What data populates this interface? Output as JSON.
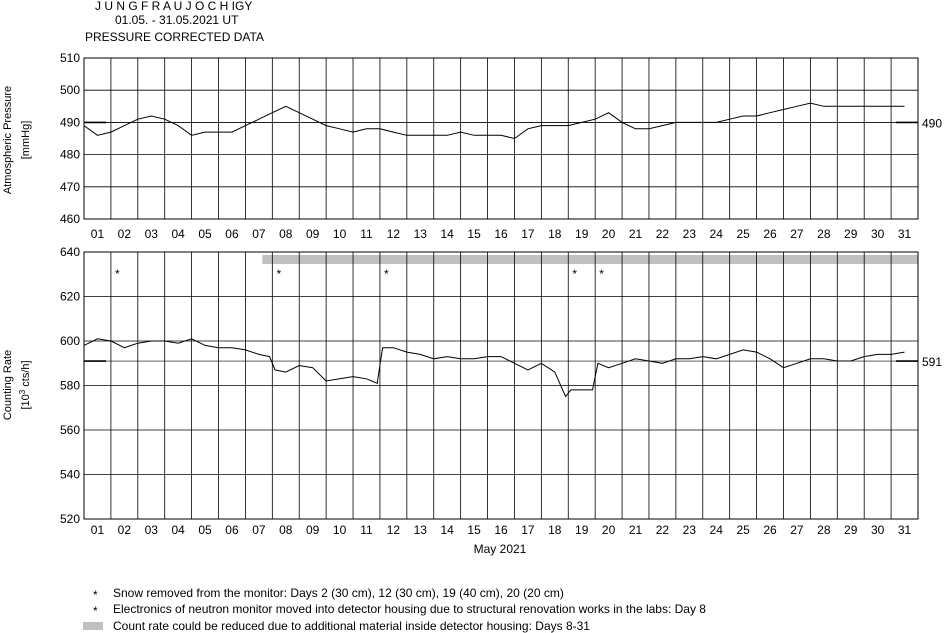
{
  "header": {
    "station": "J U N G F R A U J O C H  IGY",
    "period": "01.05. - 31.05.2021  UT",
    "subtitle": "PRESSURE CORRECTED DATA"
  },
  "chart_data": [
    {
      "type": "line",
      "title": "",
      "ylabel": "Atmospheric Pressure",
      "yunit": "[mmHg]",
      "ylim": [
        460,
        510
      ],
      "yticks": [
        "510",
        "500",
        "490",
        "480",
        "470",
        "460"
      ],
      "x_ticks": [
        "01",
        "02",
        "03",
        "04",
        "05",
        "06",
        "07",
        "08",
        "09",
        "10",
        "11",
        "12",
        "13",
        "14",
        "15",
        "16",
        "17",
        "18",
        "19",
        "20",
        "21",
        "22",
        "23",
        "24",
        "25",
        "26",
        "27",
        "28",
        "29",
        "30",
        "31"
      ],
      "grid": true,
      "reference_value": 490,
      "reference_label": "490",
      "series": [
        {
          "x": [
            1.0,
            1.5,
            2.0,
            2.5,
            3.0,
            3.5,
            4.0,
            4.5,
            5.0,
            5.5,
            6.0,
            6.5,
            7.0,
            7.5,
            8.0,
            8.5,
            9.0,
            9.5,
            10.0,
            10.5,
            11.0,
            11.5,
            12.0,
            12.5,
            13.0,
            13.5,
            14.0,
            14.5,
            15.0,
            15.5,
            16.0,
            16.5,
            17.0,
            17.5,
            18.0,
            18.5,
            19.0,
            19.5,
            20.0,
            20.5,
            21.0,
            21.5,
            22.0,
            22.5,
            23.0,
            23.5,
            24.0,
            24.5,
            25.0,
            25.5,
            26.0,
            26.5,
            27.0,
            27.5,
            28.0,
            28.5,
            29.0,
            29.5,
            30.0,
            30.5,
            31.0,
            31.5
          ],
          "values": [
            489,
            486,
            487,
            489,
            491,
            492,
            491,
            489,
            486,
            487,
            487,
            487,
            489,
            491,
            493,
            495,
            493,
            491,
            489,
            488,
            487,
            488,
            488,
            487,
            486,
            486,
            486,
            486,
            487,
            486,
            486,
            486,
            485,
            488,
            489,
            489,
            489,
            490,
            491,
            493,
            490,
            488,
            488,
            489,
            490,
            490,
            490,
            490,
            491,
            492,
            492,
            493,
            494,
            495,
            496,
            495,
            495,
            495,
            495,
            495,
            495,
            495
          ]
        }
      ]
    },
    {
      "type": "line",
      "title": "",
      "ylabel": "Counting Rate",
      "yunit": "[10",
      "yunit_sup": "3",
      "yunit_tail": " cts/h]",
      "ylim": [
        520,
        640
      ],
      "yticks": [
        "640",
        "620",
        "600",
        "580",
        "560",
        "540",
        "520"
      ],
      "x_ticks": [
        "01",
        "02",
        "03",
        "04",
        "05",
        "06",
        "07",
        "08",
        "09",
        "10",
        "11",
        "12",
        "13",
        "14",
        "15",
        "16",
        "17",
        "18",
        "19",
        "20",
        "21",
        "22",
        "23",
        "24",
        "25",
        "26",
        "27",
        "28",
        "29",
        "30",
        "31"
      ],
      "xlabel": "May 2021",
      "grid": true,
      "reference_value": 591,
      "reference_label": "591",
      "snow_markers": [
        {
          "day": 2,
          "label": "*"
        },
        {
          "day": 8,
          "label": "*"
        },
        {
          "day": 12,
          "label": "*"
        },
        {
          "day": 19,
          "label": "*"
        },
        {
          "day": 20,
          "label": "*"
        }
      ],
      "reduced_band": {
        "from_day": 8,
        "to_day": 31
      },
      "series": [
        {
          "x": [
            1.0,
            1.5,
            2.0,
            2.5,
            3.0,
            3.5,
            4.0,
            4.5,
            5.0,
            5.5,
            6.0,
            6.5,
            7.0,
            7.5,
            7.9,
            8.1,
            8.5,
            9.0,
            9.5,
            10.0,
            10.5,
            11.0,
            11.5,
            11.9,
            12.1,
            12.5,
            13.0,
            13.5,
            14.0,
            14.5,
            15.0,
            15.5,
            16.0,
            16.5,
            17.0,
            17.5,
            18.0,
            18.5,
            18.9,
            19.1,
            19.5,
            19.9,
            20.1,
            20.5,
            21.0,
            21.5,
            22.0,
            22.5,
            23.0,
            23.5,
            24.0,
            24.5,
            25.0,
            25.5,
            26.0,
            26.5,
            27.0,
            27.5,
            28.0,
            28.5,
            29.0,
            29.5,
            30.0,
            30.5,
            31.0,
            31.5
          ],
          "values": [
            598,
            601,
            600,
            597,
            599,
            600,
            600,
            599,
            601,
            598,
            597,
            597,
            596,
            594,
            593,
            587,
            586,
            589,
            588,
            582,
            583,
            584,
            583,
            581,
            597,
            597,
            595,
            594,
            592,
            593,
            592,
            592,
            593,
            593,
            590,
            587,
            590,
            586,
            575,
            578,
            578,
            578,
            590,
            588,
            590,
            592,
            591,
            590,
            592,
            592,
            593,
            592,
            594,
            596,
            595,
            592,
            588,
            590,
            592,
            592,
            591,
            591,
            593,
            594,
            594,
            595
          ]
        }
      ]
    }
  ],
  "legend": [
    {
      "symbol": "*",
      "text": "Snow removed from the monitor: Days 2 (30 cm), 12 (30 cm), 19 (40 cm), 20 (20 cm)"
    },
    {
      "symbol": "*",
      "text": "Electronics of neutron monitor moved into detector housing due to structural renovation works in the labs: Day 8"
    },
    {
      "symbol": "band",
      "text": "Count rate could be reduced due to additional material inside detector housing: Days 8-31"
    }
  ],
  "colors": {
    "line": "#000000",
    "grid": "#000000",
    "band": "#c0c0c0",
    "background": "#ffffff"
  }
}
